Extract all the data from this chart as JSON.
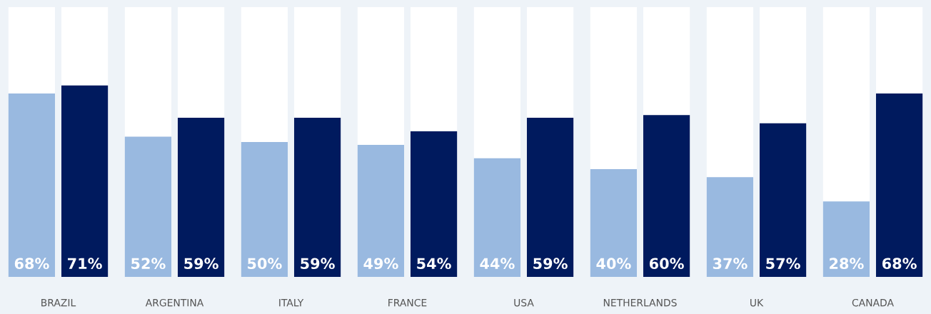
{
  "chart_data": {
    "type": "bar",
    "categories": [
      "BRAZIL",
      "ARGENTINA",
      "ITALY",
      "FRANCE",
      "USA",
      "NETHERLANDS",
      "UK",
      "CANADA"
    ],
    "ylim": [
      0,
      100
    ],
    "grid": false,
    "legend": false,
    "tick_labels": "x",
    "series": [
      {
        "color": "#99b9e0",
        "values": [
          68,
          52,
          50,
          49,
          44,
          40,
          37,
          28
        ],
        "value_labels": [
          "68%",
          "52%",
          "50%",
          "49%",
          "44%",
          "40%",
          "37%",
          "28%"
        ]
      },
      {
        "color": "#001a5e",
        "values": [
          71,
          59,
          59,
          54,
          59,
          60,
          57,
          68
        ],
        "value_labels": [
          "71%",
          "59%",
          "59%",
          "54%",
          "59%",
          "60%",
          "57%",
          "68%"
        ]
      }
    ]
  }
}
